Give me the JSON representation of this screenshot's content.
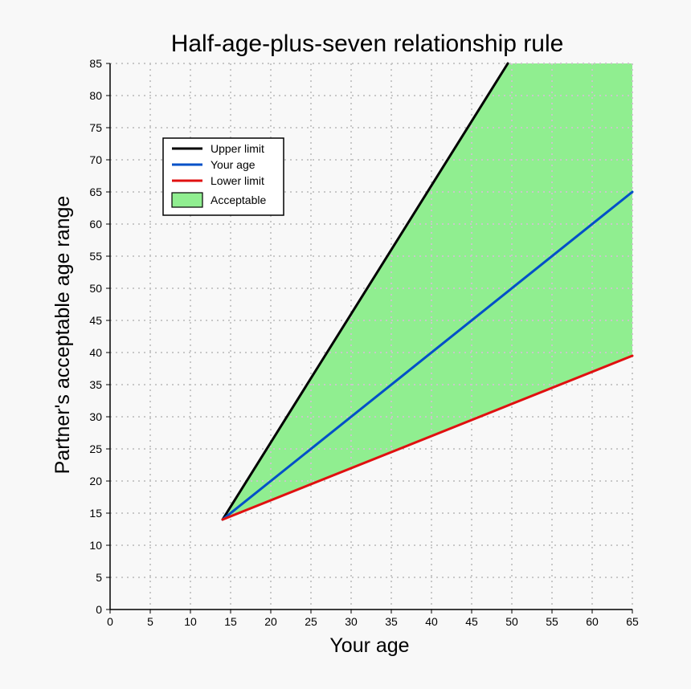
{
  "chart_data": {
    "type": "line",
    "title": "Half-age-plus-seven relationship rule",
    "xlabel": "Your age",
    "ylabel": "Partner's acceptable age range",
    "xlim": [
      0,
      65
    ],
    "ylim": [
      0,
      85
    ],
    "x_ticks": [
      0,
      5,
      10,
      15,
      20,
      25,
      30,
      35,
      40,
      45,
      50,
      55,
      60,
      65
    ],
    "y_ticks": [
      0,
      5,
      10,
      15,
      20,
      25,
      30,
      35,
      40,
      45,
      50,
      55,
      60,
      65,
      70,
      75,
      80,
      85
    ],
    "grid": true,
    "legend_position": "top-left",
    "series": [
      {
        "name": "Upper limit",
        "color": "#000000",
        "points": [
          [
            14,
            14
          ],
          [
            49.5,
            85
          ]
        ]
      },
      {
        "name": "Your age",
        "color": "#0050c8",
        "points": [
          [
            14,
            14
          ],
          [
            65,
            65
          ]
        ]
      },
      {
        "name": "Lower limit",
        "color": "#e01010",
        "points": [
          [
            14,
            14
          ],
          [
            65,
            39.5
          ]
        ]
      }
    ],
    "area": {
      "name": "Acceptable",
      "color": "#90ee90",
      "points": [
        [
          14,
          14
        ],
        [
          49.5,
          85
        ],
        [
          65,
          85
        ],
        [
          65,
          39.5
        ]
      ]
    }
  }
}
